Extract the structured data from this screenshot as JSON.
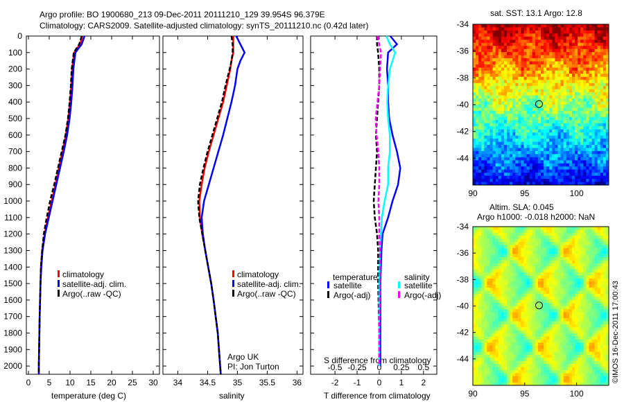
{
  "title_line1": "Argo profile: BO 1900680_213 09-Dec-2011 20111210_129 39.954S 96.379E",
  "title_line2": "Climatology: CARS2009. Satellite-adjusted climatology: synTS_20111210.nc (0.42d later)",
  "colors": {
    "clim": "#ff0000",
    "sat": "#0000ff",
    "argo": "#000000",
    "s_sat": "#00ffff",
    "s_argo": "#ff00ff"
  },
  "chart_data": [
    {
      "type": "line",
      "name": "temperature",
      "xlabel": "temperature (deg C)",
      "ylabel": "",
      "xlim": [
        -0.5,
        31.5
      ],
      "ylim": [
        2050,
        0
      ],
      "xticks": [
        0,
        5,
        10,
        15,
        20,
        25,
        30
      ],
      "yticks": [
        0,
        100,
        200,
        300,
        400,
        500,
        600,
        700,
        800,
        900,
        1000,
        1100,
        1200,
        1300,
        1400,
        1500,
        1600,
        1700,
        1800,
        1900,
        2000
      ],
      "legend": [
        "climatology",
        "satellite-adj. clim.",
        "Argo(..raw -QC)"
      ],
      "depth": [
        0,
        50,
        100,
        200,
        300,
        400,
        500,
        600,
        700,
        800,
        900,
        1000,
        1100,
        1200,
        1300,
        1400,
        1500,
        1700,
        2000,
        2050
      ],
      "series": [
        {
          "name": "climatology",
          "values": [
            13.0,
            12.4,
            11.0,
            10.5,
            10.3,
            10.0,
            9.6,
            9.0,
            8.2,
            7.3,
            6.5,
            5.6,
            4.7,
            3.9,
            3.3,
            3.0,
            2.9,
            2.7,
            2.5,
            2.5
          ]
        },
        {
          "name": "satellite-adj. clim.",
          "values": [
            13.5,
            12.8,
            11.3,
            10.8,
            10.6,
            10.3,
            9.9,
            9.3,
            8.5,
            7.6,
            6.7,
            5.8,
            4.9,
            4.0,
            3.4,
            3.1,
            2.9,
            2.7,
            2.5,
            2.5
          ]
        },
        {
          "name": "Argo(..raw -QC)",
          "values": [
            12.8,
            12.2,
            10.9,
            10.4,
            10.2,
            9.9,
            9.5,
            8.9,
            8.0,
            7.1,
            6.2,
            5.2,
            4.4,
            3.7,
            3.3,
            3.0,
            2.9,
            2.7,
            2.5,
            2.5
          ]
        }
      ]
    },
    {
      "type": "line",
      "name": "salinity",
      "xlabel": "salinity",
      "xlim": [
        33.75,
        36.1
      ],
      "ylim": [
        2050,
        0
      ],
      "xticks": [
        34,
        34.5,
        35,
        35.5,
        36
      ],
      "legend": [
        "climatology",
        "satellite-adj. clim.",
        "Argo(..raw -QC)"
      ],
      "annotation": [
        "Argo UK",
        "PI: Jon Turton"
      ],
      "depth": [
        0,
        50,
        100,
        150,
        200,
        300,
        400,
        500,
        600,
        700,
        800,
        900,
        1000,
        1100,
        1200,
        1300,
        1400,
        1500,
        1600,
        1800,
        2000,
        2050
      ],
      "series": [
        {
          "name": "climatology",
          "values": [
            34.93,
            34.93,
            34.93,
            34.9,
            34.88,
            34.82,
            34.76,
            34.68,
            34.6,
            34.52,
            34.45,
            34.4,
            34.36,
            34.37,
            34.41,
            34.46,
            34.51,
            34.56,
            34.6,
            34.67,
            34.71,
            34.72
          ]
        },
        {
          "name": "satellite-adj. clim.",
          "values": [
            34.98,
            35.05,
            35.12,
            35.05,
            35.0,
            34.96,
            34.9,
            34.83,
            34.76,
            34.68,
            34.6,
            34.52,
            34.44,
            34.4,
            34.42,
            34.46,
            34.51,
            34.56,
            34.6,
            34.67,
            34.71,
            34.72
          ]
        },
        {
          "name": "Argo(..raw -QC)",
          "values": [
            34.9,
            34.92,
            34.92,
            34.9,
            34.87,
            34.8,
            34.74,
            34.66,
            34.58,
            34.5,
            34.43,
            34.37,
            34.34,
            34.36,
            34.41,
            34.46,
            34.51,
            34.56,
            34.6,
            34.67,
            34.71,
            34.72
          ]
        }
      ]
    },
    {
      "type": "line",
      "name": "difference",
      "xlabel": "T difference from climatology",
      "x2label": "S difference from climatology",
      "xlim": [
        -3.1,
        2.6
      ],
      "xticks": [
        -2,
        -1,
        0,
        1,
        2
      ],
      "x2ticks": [
        -0.5,
        -0.25,
        0,
        0.25,
        0.5
      ],
      "legend_titles": [
        "temperature",
        "salinity"
      ],
      "legend": [
        "satellite",
        "Argo(-adj)",
        "satellite",
        "Argo(-adj)"
      ],
      "depth": [
        0,
        50,
        100,
        200,
        300,
        400,
        500,
        600,
        700,
        800,
        900,
        1000,
        1100,
        1200,
        1300,
        1500,
        1800,
        2000
      ],
      "series": [
        {
          "name": "T satellite",
          "values": [
            0.5,
            0.8,
            0.4,
            0.35,
            0.4,
            0.4,
            0.45,
            0.6,
            0.8,
            0.95,
            0.85,
            0.6,
            0.4,
            0.15,
            0.1,
            0.05,
            0.05,
            0.05
          ]
        },
        {
          "name": "T Argo(-adj)",
          "values": [
            -0.1,
            -0.1,
            -0.05,
            0.0,
            0.0,
            -0.05,
            -0.1,
            -0.15,
            -0.1,
            -0.15,
            -0.2,
            -0.25,
            -0.2,
            -0.1,
            -0.05,
            -0.05,
            0.0,
            0.0
          ]
        },
        {
          "name": "S satellite",
          "values": [
            0.08,
            0.12,
            0.18,
            0.12,
            0.1,
            0.09,
            0.1,
            0.12,
            0.12,
            0.1,
            0.1,
            0.06,
            0.03,
            0.02,
            0.01,
            0.0,
            0.0,
            0.0
          ]
        },
        {
          "name": "S Argo(-adj)",
          "values": [
            -0.02,
            0.0,
            0.02,
            0.01,
            0.0,
            -0.02,
            -0.04,
            -0.03,
            -0.01,
            0.0,
            0.0,
            -0.01,
            0.0,
            0.0,
            0.01,
            0.01,
            0.0,
            0.0
          ]
        }
      ]
    },
    {
      "type": "heatmap",
      "name": "sst-map",
      "title": "sat. SST: 13.1 Argo: 12.8",
      "xlim": [
        90,
        103.1
      ],
      "ylim": [
        -46,
        -34
      ],
      "xticks": [
        90,
        95,
        100
      ],
      "yticks": [
        -34,
        -36,
        -38,
        -40,
        -42,
        -44
      ],
      "marker": [
        96.379,
        -39.954
      ]
    },
    {
      "type": "heatmap",
      "name": "sla-map",
      "title": [
        "Altim. SLA: 0.045",
        "Argo h1000: -0.018 h2000: NaN"
      ],
      "xlim": [
        90,
        103.1
      ],
      "ylim": [
        -46,
        -34
      ],
      "xticks": [
        90,
        95,
        100
      ],
      "yticks": [
        -34,
        -36,
        -38,
        -40,
        -42,
        -44
      ],
      "marker": [
        96.379,
        -39.954
      ]
    }
  ],
  "credit": "©IMOS 16-Dec-2011 17:00:43"
}
